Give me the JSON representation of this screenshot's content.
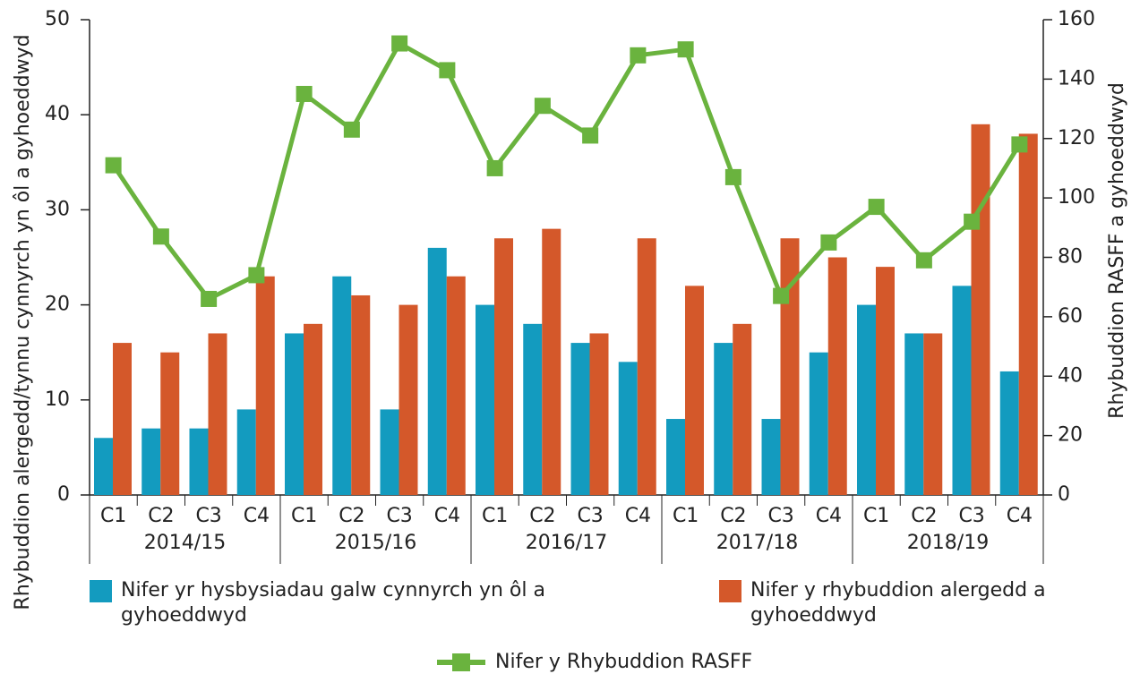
{
  "chart_data": {
    "type": "bar-line",
    "y_label": "Rhybuddion alergedd/tynnu cynnyrch yn ôl a gyhoeddwyd",
    "y2_label": "Rhybuddion RASFF a gyhoeddwyd",
    "categories": [
      "C1",
      "C2",
      "C3",
      "C4",
      "C1",
      "C2",
      "C3",
      "C4",
      "C1",
      "C2",
      "C3",
      "C4",
      "C1",
      "C2",
      "C3",
      "C4",
      "C1",
      "C2",
      "C3",
      "C4"
    ],
    "groups": [
      "2014/15",
      "2015/16",
      "2016/17",
      "2017/18",
      "2018/19"
    ],
    "series": [
      {
        "name": "Nifer yr hysbysiadau galw cynnyrch yn ôl a gyhoeddwyd",
        "type": "bar",
        "color": "#139bbf",
        "values": [
          6,
          7,
          7,
          9,
          17,
          23,
          9,
          26,
          20,
          18,
          16,
          14,
          8,
          16,
          8,
          15,
          20,
          17,
          22,
          13
        ]
      },
      {
        "name": "Nifer y rhybuddion alergedd a gyhoeddwyd",
        "type": "bar",
        "color": "#d4582a",
        "values": [
          16,
          15,
          17,
          23,
          18,
          21,
          20,
          23,
          27,
          28,
          17,
          27,
          22,
          18,
          27,
          25,
          24,
          17,
          39,
          38
        ]
      },
      {
        "name": "Nifer y Rhybuddion RASFF",
        "type": "line",
        "axis": "y2",
        "color": "#6ab33e",
        "values": [
          111,
          87,
          66,
          74,
          135,
          123,
          152,
          143,
          110,
          131,
          121,
          148,
          150,
          107,
          67,
          85,
          97,
          79,
          92,
          118
        ]
      }
    ],
    "ylim": [
      0,
      50
    ],
    "yticks": [
      0,
      10,
      20,
      30,
      40,
      50
    ],
    "y2lim": [
      0,
      160
    ],
    "y2ticks": [
      0,
      20,
      40,
      60,
      80,
      100,
      120,
      140,
      160
    ]
  }
}
